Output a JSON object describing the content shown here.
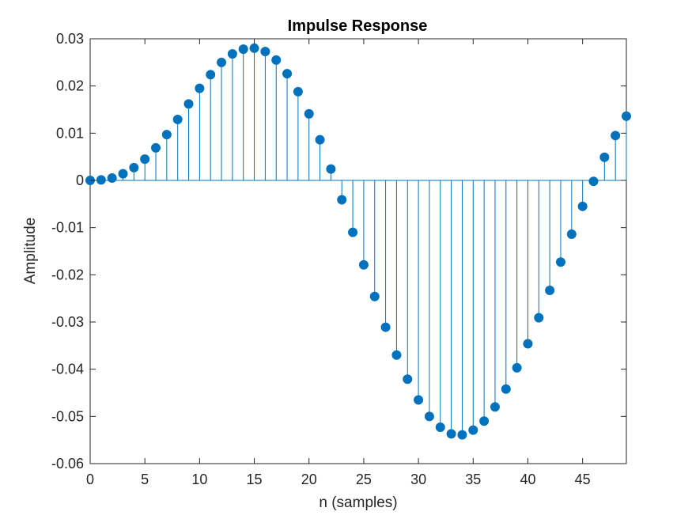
{
  "chart_data": {
    "type": "stem",
    "title": "Impulse Response",
    "xlabel": "n (samples)",
    "ylabel": "Amplitude",
    "xlim": [
      0,
      49
    ],
    "ylim": [
      -0.06,
      0.03
    ],
    "xticks": [
      0,
      5,
      10,
      15,
      20,
      25,
      30,
      35,
      40,
      45
    ],
    "xtick_labels": [
      "0",
      "5",
      "10",
      "15",
      "20",
      "25",
      "30",
      "35",
      "40",
      "45"
    ],
    "yticks": [
      0.03,
      0.02,
      0.01,
      0,
      -0.01,
      -0.02,
      -0.03,
      -0.04,
      -0.05,
      -0.06
    ],
    "ytick_labels": [
      "0.03",
      "0.02",
      "0.01",
      "0",
      "-0.01",
      "-0.02",
      "-0.03",
      "-0.04",
      "-0.05",
      "-0.06"
    ],
    "grid": false,
    "color": "#0072BD",
    "x": [
      0,
      1,
      2,
      3,
      4,
      5,
      6,
      7,
      8,
      9,
      10,
      11,
      12,
      13,
      14,
      15,
      16,
      17,
      18,
      19,
      20,
      21,
      22,
      23,
      24,
      25,
      26,
      27,
      28,
      29,
      30,
      31,
      32,
      33,
      34,
      35,
      36,
      37,
      38,
      39,
      40,
      41,
      42,
      43,
      44,
      45,
      46,
      47,
      48,
      49
    ],
    "values": [
      0,
      0.0001,
      0.0005,
      0.0014,
      0.0027,
      0.0045,
      0.0069,
      0.0097,
      0.0129,
      0.0162,
      0.0195,
      0.0224,
      0.025,
      0.0268,
      0.0278,
      0.028,
      0.0273,
      0.0255,
      0.0226,
      0.0188,
      0.0141,
      0.0086,
      0.0024,
      -0.0041,
      -0.011,
      -0.0179,
      -0.0246,
      -0.0311,
      -0.037,
      -0.0421,
      -0.0465,
      -0.05,
      -0.0523,
      -0.0537,
      -0.0539,
      -0.0529,
      -0.051,
      -0.048,
      -0.0442,
      -0.0397,
      -0.0346,
      -0.0291,
      -0.0233,
      -0.0173,
      -0.0114,
      -0.0055,
      -0.0002,
      0.0049,
      0.0095,
      0.0136
    ]
  }
}
